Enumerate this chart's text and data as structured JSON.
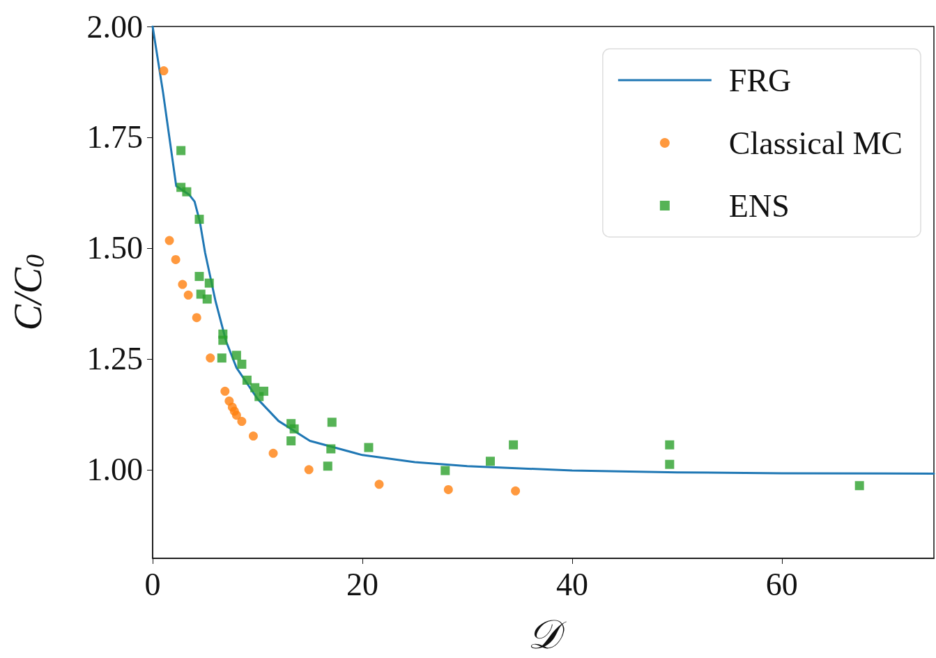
{
  "chart_data": {
    "type": "scatter",
    "xlabel": "𝒟",
    "ylabel": "C/C$_{0}$",
    "xlim": [
      0,
      74.5
    ],
    "ylim": [
      0.8,
      2.0
    ],
    "xticks": [
      0,
      20,
      40,
      60
    ],
    "yticks": [
      {
        "value": 1,
        "label": "1.00"
      },
      1.25,
      {
        "value": 1.5,
        "label": "1.50"
      },
      1.75,
      {
        "value": 2,
        "label": "2.00"
      }
    ],
    "grid": false,
    "legend": "top right",
    "series": [
      {
        "name": "FRG",
        "type": "line",
        "marker": "none",
        "color": "#1f77b4",
        "x": [
          0,
          1,
          2.25,
          3.5,
          4,
          4.5,
          5,
          6,
          7,
          8,
          10,
          12,
          15,
          20,
          25,
          30,
          40,
          50,
          60,
          74.5
        ],
        "values": [
          2.0,
          1.85,
          1.64,
          1.62,
          1.605,
          1.56,
          1.49,
          1.38,
          1.29,
          1.23,
          1.16,
          1.11,
          1.065,
          1.033,
          1.017,
          1.008,
          0.998,
          0.994,
          0.992,
          0.991
        ]
      },
      {
        "name": "Classical MC",
        "marker": "circle",
        "color": "#ff7f0e",
        "x": [
          1.06,
          1.6,
          2.2,
          2.85,
          3.4,
          4.2,
          5.5,
          6.9,
          7.3,
          7.6,
          7.8,
          8.0,
          8.5,
          9.6,
          11.5,
          14.9,
          21.6,
          28.2,
          34.6
        ],
        "values": [
          1.9,
          1.517,
          1.474,
          1.418,
          1.394,
          1.343,
          1.252,
          1.177,
          1.155,
          1.141,
          1.132,
          1.123,
          1.109,
          1.076,
          1.037,
          1.0,
          0.967,
          0.955,
          0.952
        ]
      },
      {
        "name": "ENS",
        "marker": "square",
        "color": "#2ca02c",
        "x": [
          2.7,
          2.7,
          3.25,
          4.45,
          4.45,
          5.4,
          4.6,
          5.2,
          6.7,
          6.7,
          6.6,
          8.0,
          8.5,
          9.0,
          9.75,
          10.15,
          10.6,
          13.2,
          13.5,
          13.2,
          17.1,
          17.0,
          16.7,
          20.6,
          27.9,
          32.2,
          34.4,
          49.3,
          49.3,
          67.4
        ],
        "values": [
          1.72,
          1.637,
          1.627,
          1.565,
          1.436,
          1.421,
          1.396,
          1.385,
          1.306,
          1.292,
          1.252,
          1.258,
          1.238,
          1.202,
          1.185,
          1.165,
          1.177,
          1.104,
          1.092,
          1.065,
          1.107,
          1.047,
          1.008,
          1.05,
          0.998,
          1.019,
          1.056,
          1.056,
          1.012,
          0.964
        ]
      }
    ]
  }
}
